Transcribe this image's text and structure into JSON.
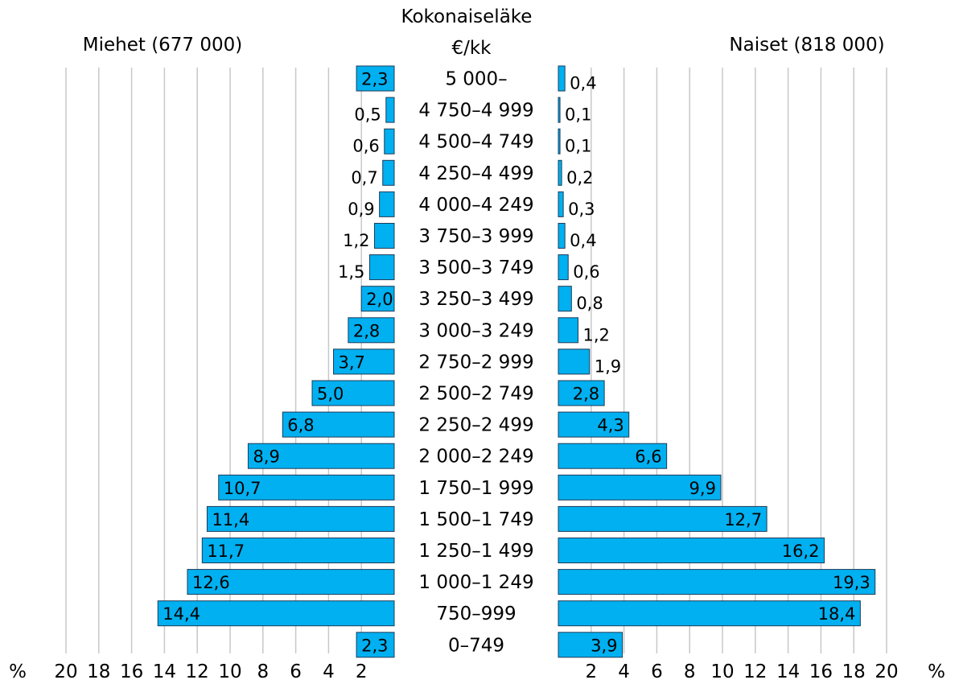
{
  "chart_data": {
    "type": "bar",
    "orientation": "horizontal-population-pyramid",
    "title": "Kokonaiseläke\n€/kk",
    "center_title_lines": [
      "Kokonaiseläke",
      "€/kk"
    ],
    "unit_label": "%",
    "left_series_title": "Miehet (677 000)",
    "right_series_title": "Naiset (818 000)",
    "categories": [
      "5 000–",
      "4 750–4 999",
      "4 500–4 749",
      "4 250–4 499",
      "4 000–4 249",
      "3 750–3 999",
      "3 500–3 749",
      "3 250–3 499",
      "3 000–3 249",
      "2 750–2 999",
      "2 500–2 749",
      "2 250–2 499",
      "2 000–2 249",
      "1 750–1 999",
      "1 500–1 749",
      "1 250–1 499",
      "1 000–1 249",
      "750–999",
      "0–749"
    ],
    "series": [
      {
        "name": "Miehet (677 000)",
        "side": "left",
        "values": [
          2.3,
          0.5,
          0.6,
          0.7,
          0.9,
          1.2,
          1.5,
          2.0,
          2.8,
          3.7,
          5.0,
          6.8,
          8.9,
          10.7,
          11.4,
          11.7,
          12.6,
          14.4,
          2.3
        ],
        "labels": [
          "2,3",
          "0,5",
          "0,6",
          "0,7",
          "0,9",
          "1,2",
          "1,5",
          "2,0",
          "2,8",
          "3,7",
          "5,0",
          "6,8",
          "8,9",
          "10,7",
          "11,4",
          "11,7",
          "12,6",
          "14,4",
          "2,3"
        ]
      },
      {
        "name": "Naiset (818 000)",
        "side": "right",
        "values": [
          0.4,
          0.1,
          0.1,
          0.2,
          0.3,
          0.4,
          0.6,
          0.8,
          1.2,
          1.9,
          2.8,
          4.3,
          6.6,
          9.9,
          12.7,
          16.2,
          19.3,
          18.4,
          3.9
        ],
        "labels": [
          "0,4",
          "0,1",
          "0,1",
          "0,2",
          "0,3",
          "0,4",
          "0,6",
          "0,8",
          "1,2",
          "1,9",
          "2,8",
          "4,3",
          "6,6",
          "9,9",
          "12,7",
          "16,2",
          "19,3",
          "18,4",
          "3,9"
        ]
      }
    ],
    "xlim": [
      0,
      20
    ],
    "left_ticks": [
      "20",
      "18",
      "16",
      "14",
      "12",
      "10",
      "8",
      "6",
      "4",
      "2"
    ],
    "left_tick_values": [
      20,
      18,
      16,
      14,
      12,
      10,
      8,
      6,
      4,
      2
    ],
    "right_ticks": [
      "2",
      "4",
      "6",
      "8",
      "10",
      "12",
      "14",
      "16",
      "18",
      "20"
    ],
    "right_tick_values": [
      2,
      4,
      6,
      8,
      10,
      12,
      14,
      16,
      18,
      20
    ],
    "grid": true,
    "bar_color": "#00b0f0",
    "bar_border_color": "#1f3b57",
    "grid_color": "#c8c8c8"
  }
}
